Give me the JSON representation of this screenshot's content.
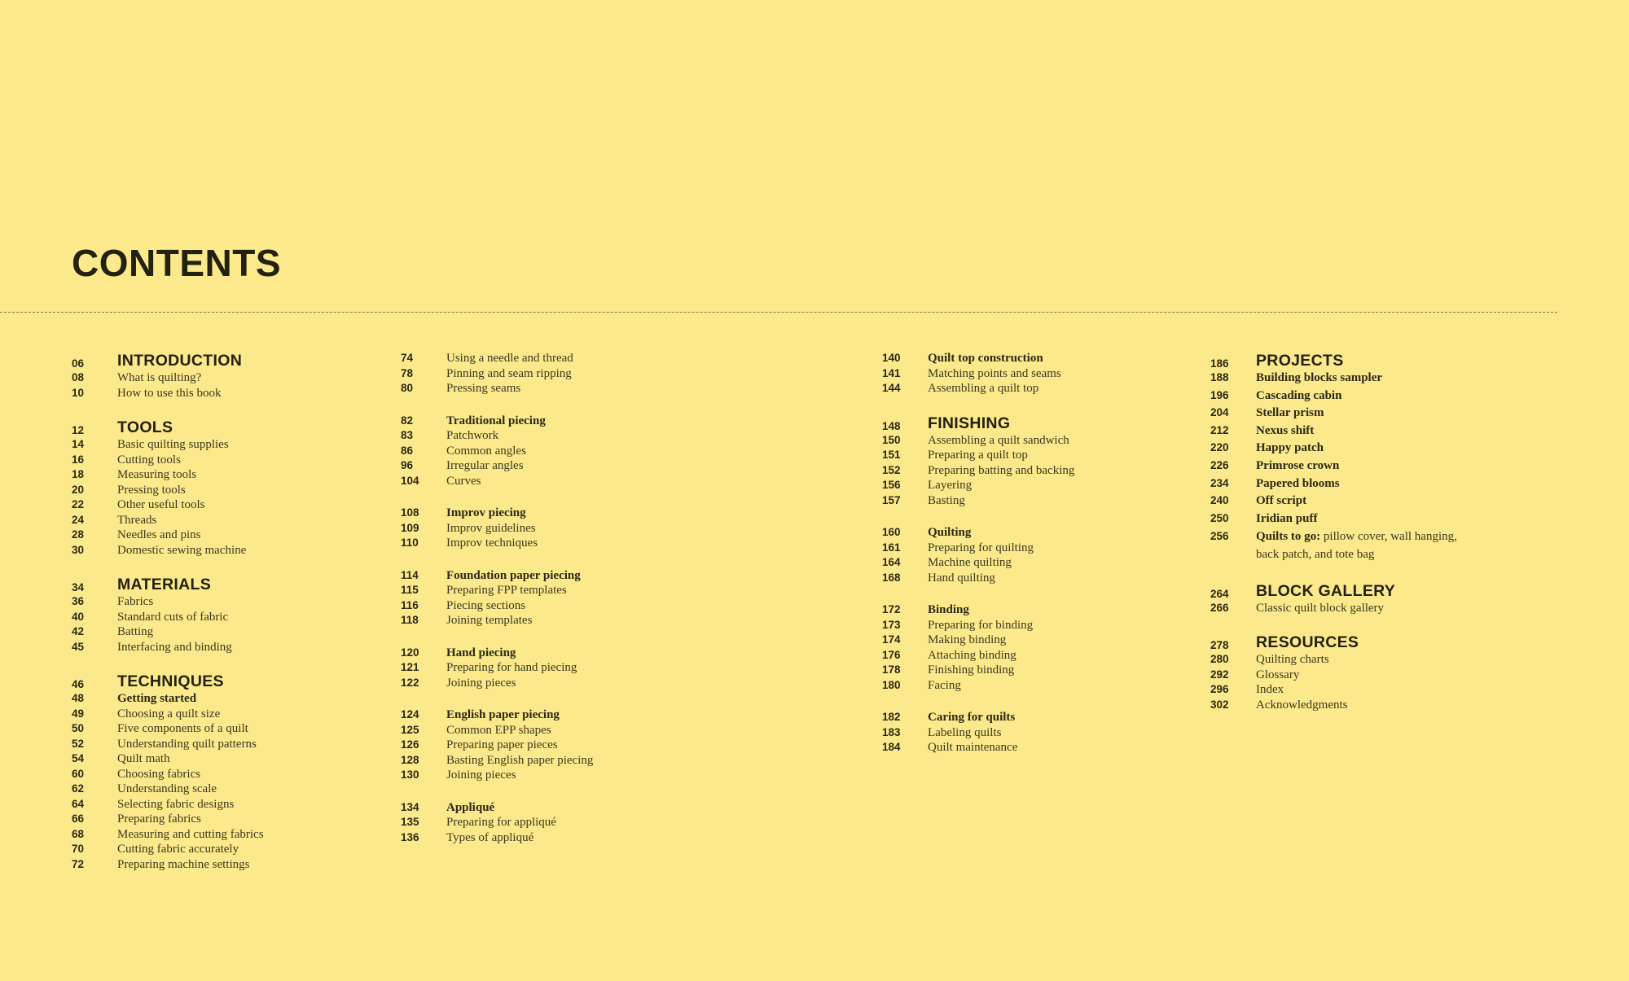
{
  "title": "CONTENTS",
  "colors": {
    "background": "#fce98b",
    "text": "#24220f"
  },
  "columns": [
    {
      "groups": [
        {
          "rows": [
            {
              "page": "06",
              "text": "INTRODUCTION",
              "kind": "heading"
            },
            {
              "page": "08",
              "text": "What is quilting?",
              "kind": "item"
            },
            {
              "page": "10",
              "text": "How to use this book",
              "kind": "item"
            }
          ]
        },
        {
          "rows": [
            {
              "page": "12",
              "text": "TOOLS",
              "kind": "heading"
            },
            {
              "page": "14",
              "text": "Basic quilting supplies",
              "kind": "item"
            },
            {
              "page": "16",
              "text": "Cutting tools",
              "kind": "item"
            },
            {
              "page": "18",
              "text": "Measuring tools",
              "kind": "item"
            },
            {
              "page": "20",
              "text": "Pressing tools",
              "kind": "item"
            },
            {
              "page": "22",
              "text": "Other useful tools",
              "kind": "item"
            },
            {
              "page": "24",
              "text": "Threads",
              "kind": "item"
            },
            {
              "page": "28",
              "text": "Needles and pins",
              "kind": "item"
            },
            {
              "page": "30",
              "text": "Domestic sewing machine",
              "kind": "item"
            }
          ]
        },
        {
          "rows": [
            {
              "page": "34",
              "text": "MATERIALS",
              "kind": "heading"
            },
            {
              "page": "36",
              "text": "Fabrics",
              "kind": "item"
            },
            {
              "page": "40",
              "text": "Standard cuts of fabric",
              "kind": "item"
            },
            {
              "page": "42",
              "text": "Batting",
              "kind": "item"
            },
            {
              "page": "45",
              "text": "Interfacing and binding",
              "kind": "item"
            }
          ]
        },
        {
          "rows": [
            {
              "page": "46",
              "text": "TECHNIQUES",
              "kind": "heading"
            },
            {
              "page": "48",
              "text": "Getting started",
              "kind": "bold"
            },
            {
              "page": "49",
              "text": "Choosing a quilt size",
              "kind": "item"
            },
            {
              "page": "50",
              "text": "Five components of a quilt",
              "kind": "item"
            },
            {
              "page": "52",
              "text": "Understanding quilt patterns",
              "kind": "item"
            },
            {
              "page": "54",
              "text": "Quilt math",
              "kind": "item"
            },
            {
              "page": "60",
              "text": "Choosing fabrics",
              "kind": "item"
            },
            {
              "page": "62",
              "text": "Understanding scale",
              "kind": "item"
            },
            {
              "page": "64",
              "text": "Selecting fabric designs",
              "kind": "item"
            },
            {
              "page": "66",
              "text": "Preparing fabrics",
              "kind": "item"
            },
            {
              "page": "68",
              "text": "Measuring and cutting fabrics",
              "kind": "item"
            },
            {
              "page": "70",
              "text": "Cutting fabric accurately",
              "kind": "item"
            },
            {
              "page": "72",
              "text": "Preparing machine settings",
              "kind": "item"
            }
          ]
        }
      ]
    },
    {
      "groups": [
        {
          "rows": [
            {
              "page": "74",
              "text": "Using a needle and thread",
              "kind": "item"
            },
            {
              "page": "78",
              "text": "Pinning and seam ripping",
              "kind": "item"
            },
            {
              "page": "80",
              "text": "Pressing seams",
              "kind": "item"
            }
          ]
        },
        {
          "rows": [
            {
              "page": "82",
              "text": "Traditional piecing",
              "kind": "bold"
            },
            {
              "page": "83",
              "text": "Patchwork",
              "kind": "item"
            },
            {
              "page": "86",
              "text": "Common angles",
              "kind": "item"
            },
            {
              "page": "96",
              "text": "Irregular angles",
              "kind": "item"
            },
            {
              "page": "104",
              "text": "Curves",
              "kind": "item"
            }
          ]
        },
        {
          "rows": [
            {
              "page": "108",
              "text": "Improv piecing",
              "kind": "bold"
            },
            {
              "page": "109",
              "text": "Improv guidelines",
              "kind": "item"
            },
            {
              "page": "110",
              "text": "Improv techniques",
              "kind": "item"
            }
          ]
        },
        {
          "rows": [
            {
              "page": "114",
              "text": "Foundation paper piecing",
              "kind": "bold"
            },
            {
              "page": "115",
              "text": "Preparing FPP templates",
              "kind": "item"
            },
            {
              "page": "116",
              "text": "Piecing sections",
              "kind": "item"
            },
            {
              "page": "118",
              "text": "Joining templates",
              "kind": "item"
            }
          ]
        },
        {
          "rows": [
            {
              "page": "120",
              "text": "Hand piecing",
              "kind": "bold"
            },
            {
              "page": "121",
              "text": "Preparing for hand piecing",
              "kind": "item"
            },
            {
              "page": "122",
              "text": "Joining pieces",
              "kind": "item"
            }
          ]
        },
        {
          "rows": [
            {
              "page": "124",
              "text": "English paper piecing",
              "kind": "bold"
            },
            {
              "page": "125",
              "text": "Common EPP shapes",
              "kind": "item"
            },
            {
              "page": "126",
              "text": "Preparing paper pieces",
              "kind": "item"
            },
            {
              "page": "128",
              "text": "Basting English paper piecing",
              "kind": "item"
            },
            {
              "page": "130",
              "text": "Joining pieces",
              "kind": "item"
            }
          ]
        },
        {
          "rows": [
            {
              "page": "134",
              "text": "Appliqué",
              "kind": "bold"
            },
            {
              "page": "135",
              "text": "Preparing for appliqué",
              "kind": "item"
            },
            {
              "page": "136",
              "text": "Types of appliqué",
              "kind": "item"
            }
          ]
        }
      ]
    },
    {
      "groups": [
        {
          "rows": [
            {
              "page": "140",
              "text": "Quilt top construction",
              "kind": "bold"
            },
            {
              "page": "141",
              "text": "Matching points and seams",
              "kind": "item"
            },
            {
              "page": "144",
              "text": "Assembling a quilt top",
              "kind": "item"
            }
          ]
        },
        {
          "rows": [
            {
              "page": "148",
              "text": "FINISHING",
              "kind": "heading"
            },
            {
              "page": "150",
              "text": "Assembling a quilt sandwich",
              "kind": "item"
            },
            {
              "page": "151",
              "text": "Preparing a quilt top",
              "kind": "item"
            },
            {
              "page": "152",
              "text": "Preparing batting and backing",
              "kind": "item"
            },
            {
              "page": "156",
              "text": "Layering",
              "kind": "item"
            },
            {
              "page": "157",
              "text": "Basting",
              "kind": "item"
            }
          ]
        },
        {
          "rows": [
            {
              "page": "160",
              "text": "Quilting",
              "kind": "bold"
            },
            {
              "page": "161",
              "text": "Preparing for quilting",
              "kind": "item"
            },
            {
              "page": "164",
              "text": "Machine quilting",
              "kind": "item"
            },
            {
              "page": "168",
              "text": "Hand quilting",
              "kind": "item"
            }
          ]
        },
        {
          "rows": [
            {
              "page": "172",
              "text": "Binding",
              "kind": "bold"
            },
            {
              "page": "173",
              "text": "Preparing for binding",
              "kind": "item"
            },
            {
              "page": "174",
              "text": "Making binding",
              "kind": "item"
            },
            {
              "page": "176",
              "text": "Attaching binding",
              "kind": "item"
            },
            {
              "page": "178",
              "text": "Finishing binding",
              "kind": "item"
            },
            {
              "page": "180",
              "text": "Facing",
              "kind": "item"
            }
          ]
        },
        {
          "rows": [
            {
              "page": "182",
              "text": "Caring for quilts",
              "kind": "bold"
            },
            {
              "page": "183",
              "text": "Labeling quilts",
              "kind": "item"
            },
            {
              "page": "184",
              "text": "Quilt maintenance",
              "kind": "item"
            }
          ]
        }
      ]
    },
    {
      "groups": [
        {
          "rows": [
            {
              "page": "186",
              "text": "PROJECTS",
              "kind": "heading"
            },
            {
              "page": "188",
              "text": "Building blocks sampler",
              "kind": "bold"
            },
            {
              "page": "196",
              "text": "Cascading cabin",
              "kind": "bold"
            },
            {
              "page": "204",
              "text": "Stellar prism",
              "kind": "bold"
            },
            {
              "page": "212",
              "text": "Nexus shift",
              "kind": "bold"
            },
            {
              "page": "220",
              "text": "Happy patch",
              "kind": "bold"
            },
            {
              "page": "226",
              "text": "Primrose crown",
              "kind": "bold"
            },
            {
              "page": "234",
              "text": "Papered blooms",
              "kind": "bold"
            },
            {
              "page": "240",
              "text": "Off script",
              "kind": "bold"
            },
            {
              "page": "250",
              "text": "Iridian puff",
              "kind": "bold"
            },
            {
              "page": "256",
              "lead": "Quilts to go:",
              "text": " pillow cover, wall hanging, back patch, and tote bag",
              "kind": "wrap"
            }
          ]
        },
        {
          "rows": [
            {
              "page": "264",
              "text": "BLOCK GALLERY",
              "kind": "heading"
            },
            {
              "page": "266",
              "text": "Classic quilt block gallery",
              "kind": "item"
            }
          ]
        },
        {
          "rows": [
            {
              "page": "278",
              "text": "RESOURCES",
              "kind": "heading"
            },
            {
              "page": "280",
              "text": "Quilting charts",
              "kind": "item"
            },
            {
              "page": "292",
              "text": "Glossary",
              "kind": "item"
            },
            {
              "page": "296",
              "text": "Index",
              "kind": "item"
            },
            {
              "page": "302",
              "text": "Acknowledgments",
              "kind": "item"
            }
          ]
        }
      ]
    }
  ]
}
